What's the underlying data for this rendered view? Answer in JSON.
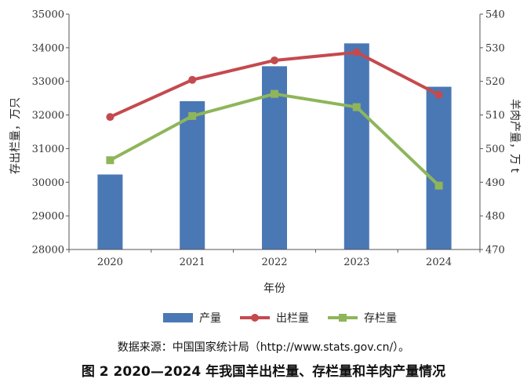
{
  "chart_data": {
    "type": "bar",
    "categories": [
      "2020",
      "2021",
      "2022",
      "2023",
      "2024"
    ],
    "series": [
      {
        "name": "产量",
        "type": "bar",
        "axis": "right",
        "color": "#4a78b5",
        "values": [
          492.3,
          514.1,
          524.5,
          531.3,
          518.4
        ]
      },
      {
        "name": "出栏量",
        "type": "line",
        "axis": "left",
        "color": "#c44a4e",
        "values": [
          31941,
          33045,
          33624,
          33864,
          32600
        ]
      },
      {
        "name": "存栏量",
        "type": "line",
        "axis": "left",
        "color": "#8fb55a",
        "values": [
          30655,
          31969,
          32627,
          32233,
          29900
        ]
      }
    ],
    "xlabel": "年份",
    "ylabel_left": "存出栏量，万只",
    "ylabel_right": "羊肉产量，万 t",
    "ylim_left": [
      28000,
      35000
    ],
    "ylim_right": [
      470,
      540
    ],
    "yticks_left": [
      "28000",
      "29000",
      "30000",
      "31000",
      "32000",
      "33000",
      "34000",
      "35000"
    ],
    "yticks_right": [
      "470",
      "480",
      "490",
      "500",
      "510",
      "520",
      "530",
      "540"
    ],
    "legend": [
      "产量",
      "出栏量",
      "存栏量"
    ],
    "legend_position": "bottom"
  },
  "source_text": "数据来源：中国国家统计局（http://www.stats.gov.cn/）。",
  "caption": "图 2 2020—2024 年我国羊出栏量、存栏量和羊肉产量情况"
}
